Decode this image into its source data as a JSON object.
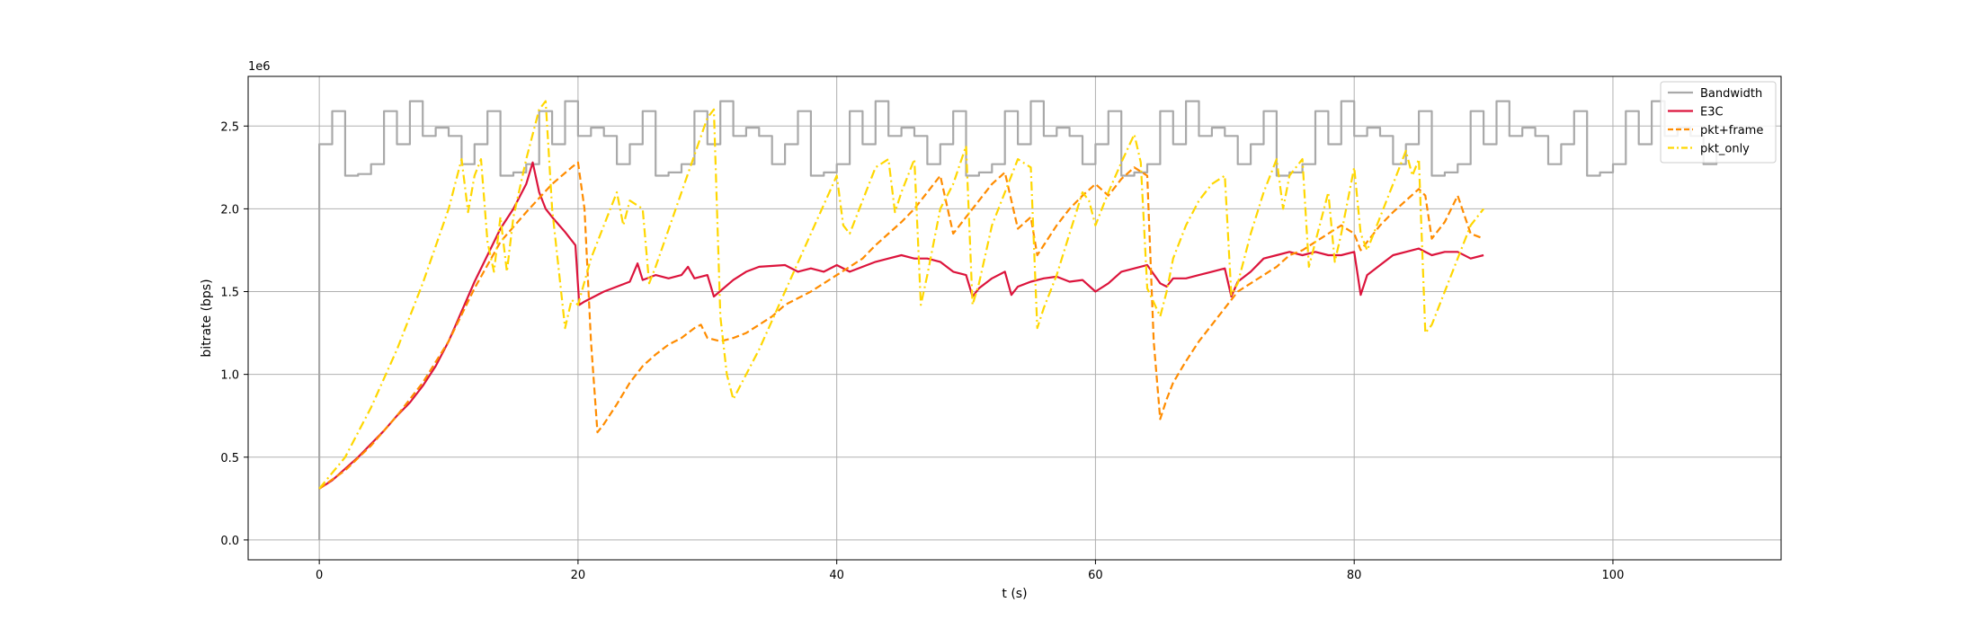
{
  "chart_data": {
    "type": "line",
    "xlabel": "t (s)",
    "ylabel": "bitrate (bps)",
    "y_offset_label": "1e6",
    "xlim": [
      -5.5,
      113
    ],
    "ylim": [
      -0.12,
      2.8
    ],
    "x_ticks": [
      0,
      20,
      40,
      60,
      80,
      100
    ],
    "x_tick_labels": [
      "0",
      "20",
      "40",
      "60",
      "80",
      "100"
    ],
    "y_ticks": [
      0.0,
      0.5,
      1.0,
      1.5,
      2.0,
      2.5
    ],
    "y_tick_labels": [
      "0.0",
      "0.5",
      "1.0",
      "1.5",
      "2.0",
      "2.5"
    ],
    "grid": true,
    "legend_position": "top-right",
    "series": [
      {
        "name": "Bandwidth",
        "color": "#a9a9a9",
        "style": "step",
        "x": [
          0,
          0,
          1,
          2,
          3,
          4,
          5,
          6,
          7,
          8,
          9,
          10,
          11,
          12,
          13,
          14,
          15,
          16,
          17,
          18,
          19,
          20,
          21,
          22,
          23,
          24,
          25,
          26,
          27,
          28,
          29,
          30,
          31,
          32,
          33,
          34,
          35,
          36,
          37,
          38,
          39,
          40,
          41,
          42,
          43,
          44,
          45,
          46,
          47,
          48,
          49,
          50,
          51,
          52,
          53,
          54,
          55,
          56,
          57,
          58,
          59,
          60,
          61,
          62,
          63,
          64,
          65,
          66,
          67,
          68,
          69,
          70,
          71,
          72,
          73,
          74,
          75,
          76,
          77,
          78,
          79,
          80,
          81,
          82,
          83,
          84,
          85,
          86,
          87,
          88,
          89,
          90,
          91,
          92,
          93,
          94,
          95,
          96,
          97,
          98,
          99,
          100,
          101,
          102,
          103,
          104,
          105,
          106,
          107,
          108
        ],
        "y": [
          0.0,
          2.39,
          2.59,
          2.2,
          2.21,
          2.27,
          2.59,
          2.39,
          2.65,
          2.44,
          2.49,
          2.44,
          2.27,
          2.39,
          2.59,
          2.2,
          2.22,
          2.27,
          2.59,
          2.39,
          2.65,
          2.44,
          2.49,
          2.44,
          2.27,
          2.39,
          2.59,
          2.2,
          2.22,
          2.27,
          2.59,
          2.39,
          2.65,
          2.44,
          2.49,
          2.44,
          2.27,
          2.39,
          2.59,
          2.2,
          2.22,
          2.27,
          2.59,
          2.39,
          2.65,
          2.44,
          2.49,
          2.44,
          2.27,
          2.39,
          2.59,
          2.2,
          2.22,
          2.27,
          2.59,
          2.39,
          2.65,
          2.44,
          2.49,
          2.44,
          2.27,
          2.39,
          2.59,
          2.2,
          2.22,
          2.27,
          2.59,
          2.39,
          2.65,
          2.44,
          2.49,
          2.44,
          2.27,
          2.39,
          2.59,
          2.2,
          2.22,
          2.27,
          2.59,
          2.39,
          2.65,
          2.44,
          2.49,
          2.44,
          2.27,
          2.39,
          2.59,
          2.2,
          2.22,
          2.27,
          2.59,
          2.39,
          2.65,
          2.44,
          2.49,
          2.44,
          2.27,
          2.39,
          2.59,
          2.2,
          2.22,
          2.27,
          2.59,
          2.39,
          2.65,
          2.44,
          2.49,
          2.44,
          2.27,
          2.39
        ]
      },
      {
        "name": "E3C",
        "color": "#dc143c",
        "style": "solid",
        "x": [
          0,
          1,
          2,
          3,
          4,
          5,
          6,
          7,
          8,
          9,
          10,
          11,
          12,
          13,
          14,
          15,
          16,
          16.5,
          17,
          17.5,
          18,
          19,
          19.8,
          20.1,
          20.5,
          22,
          24,
          24.6,
          25,
          26,
          27,
          28,
          28.5,
          29,
          30,
          30.5,
          32,
          33,
          34,
          36,
          37,
          38,
          39,
          40,
          41,
          42,
          43,
          44,
          45,
          46,
          47,
          48,
          49,
          50,
          50.5,
          51,
          52,
          53,
          53.5,
          54,
          55,
          56,
          57,
          58,
          59,
          60,
          61,
          62,
          63,
          64,
          65,
          65.5,
          66,
          67,
          68,
          69,
          70,
          70.5,
          71,
          72,
          73,
          74,
          75,
          76,
          77,
          78,
          79,
          80,
          80.5,
          81,
          82,
          83,
          84,
          85,
          86,
          87,
          88,
          89,
          90
        ],
        "y": [
          0.31,
          0.36,
          0.43,
          0.5,
          0.58,
          0.66,
          0.75,
          0.83,
          0.93,
          1.05,
          1.2,
          1.38,
          1.56,
          1.72,
          1.88,
          2.0,
          2.15,
          2.28,
          2.1,
          2.0,
          1.95,
          1.86,
          1.78,
          1.42,
          1.44,
          1.5,
          1.56,
          1.67,
          1.57,
          1.6,
          1.58,
          1.6,
          1.65,
          1.58,
          1.6,
          1.47,
          1.57,
          1.62,
          1.65,
          1.66,
          1.62,
          1.64,
          1.62,
          1.66,
          1.62,
          1.65,
          1.68,
          1.7,
          1.72,
          1.7,
          1.7,
          1.68,
          1.62,
          1.6,
          1.47,
          1.52,
          1.58,
          1.62,
          1.48,
          1.53,
          1.56,
          1.58,
          1.59,
          1.56,
          1.57,
          1.5,
          1.55,
          1.62,
          1.64,
          1.66,
          1.55,
          1.53,
          1.58,
          1.58,
          1.6,
          1.62,
          1.64,
          1.47,
          1.56,
          1.62,
          1.7,
          1.72,
          1.74,
          1.72,
          1.74,
          1.72,
          1.72,
          1.74,
          1.48,
          1.6,
          1.66,
          1.72,
          1.74,
          1.76,
          1.72,
          1.74,
          1.74,
          1.7,
          1.72
        ]
      },
      {
        "name": "pkt+frame",
        "color": "#ff8c00",
        "style": "dashed",
        "x": [
          0,
          2,
          4,
          6,
          8,
          10,
          12,
          14,
          16,
          18,
          19.5,
          20,
          20.5,
          21,
          21.5,
          22,
          23,
          24,
          25,
          26,
          27,
          28,
          29,
          29.5,
          30,
          31,
          32,
          33,
          34,
          35,
          36,
          37,
          38,
          39,
          40,
          41,
          42,
          43,
          44,
          45,
          46,
          47,
          48,
          49,
          50,
          51,
          52,
          53,
          54,
          55,
          55.5,
          56,
          57,
          58,
          59,
          60,
          61,
          62,
          63,
          64,
          64.5,
          65,
          65.5,
          66,
          67,
          68,
          69,
          70,
          71,
          72,
          73,
          74,
          75,
          76,
          77,
          78,
          79,
          80,
          80.5,
          81,
          82,
          83,
          84,
          85,
          85.5,
          86,
          87,
          88,
          89,
          90
        ],
        "y": [
          0.31,
          0.42,
          0.57,
          0.75,
          0.95,
          1.2,
          1.52,
          1.8,
          1.98,
          2.15,
          2.25,
          2.28,
          2.0,
          1.2,
          0.65,
          0.7,
          0.82,
          0.95,
          1.05,
          1.12,
          1.18,
          1.22,
          1.28,
          1.3,
          1.22,
          1.2,
          1.22,
          1.25,
          1.3,
          1.35,
          1.42,
          1.46,
          1.5,
          1.55,
          1.6,
          1.65,
          1.7,
          1.78,
          1.85,
          1.92,
          2.0,
          2.1,
          2.2,
          1.85,
          1.95,
          2.05,
          2.15,
          2.22,
          1.88,
          1.95,
          1.72,
          1.78,
          1.9,
          2.0,
          2.08,
          2.15,
          2.08,
          2.18,
          2.25,
          2.2,
          1.2,
          0.73,
          0.85,
          0.95,
          1.08,
          1.2,
          1.3,
          1.4,
          1.5,
          1.55,
          1.6,
          1.65,
          1.72,
          1.75,
          1.8,
          1.85,
          1.9,
          1.85,
          1.75,
          1.8,
          1.9,
          1.98,
          2.05,
          2.12,
          2.08,
          1.82,
          1.92,
          2.08,
          1.85,
          1.82
        ]
      },
      {
        "name": "pkt_only",
        "color": "#ffd700",
        "style": "dashdot",
        "x": [
          0,
          2,
          4,
          6,
          8,
          10,
          11,
          11.5,
          12,
          12.5,
          13,
          13.5,
          14,
          14.5,
          15,
          16,
          17,
          17.5,
          18,
          19,
          19.5,
          20,
          21,
          22,
          23,
          23.5,
          24,
          25,
          25.5,
          26,
          28,
          30,
          30.5,
          31,
          31.5,
          32,
          34,
          36,
          38,
          40,
          40.5,
          41,
          42,
          43,
          44,
          44.5,
          45,
          46,
          46.5,
          47,
          48,
          49,
          50,
          50.5,
          51,
          52,
          53,
          54,
          55,
          55.5,
          56,
          57,
          58,
          59,
          59.5,
          60,
          61,
          62,
          63,
          63.5,
          64,
          65,
          65.5,
          66,
          67,
          68,
          69,
          70,
          70.5,
          71,
          72,
          73,
          74,
          74.5,
          75,
          76,
          76.5,
          77,
          78,
          78.5,
          79,
          80,
          80.5,
          81,
          82,
          83,
          84,
          84.5,
          85,
          85.5,
          86,
          87,
          88,
          89,
          90
        ],
        "y": [
          0.31,
          0.5,
          0.8,
          1.15,
          1.55,
          2.0,
          2.3,
          1.98,
          2.2,
          2.3,
          1.8,
          1.62,
          1.95,
          1.62,
          1.95,
          2.3,
          2.6,
          2.65,
          2.0,
          1.28,
          1.45,
          1.42,
          1.7,
          1.9,
          2.1,
          1.9,
          2.05,
          2.0,
          1.55,
          1.65,
          2.1,
          2.55,
          2.6,
          1.35,
          1.0,
          0.85,
          1.15,
          1.5,
          1.85,
          2.2,
          1.9,
          1.85,
          2.05,
          2.25,
          2.3,
          1.98,
          2.1,
          2.3,
          1.42,
          1.6,
          2.0,
          2.15,
          2.38,
          1.42,
          1.55,
          1.9,
          2.1,
          2.3,
          2.25,
          1.28,
          1.4,
          1.6,
          1.85,
          2.1,
          2.05,
          1.9,
          2.1,
          2.28,
          2.45,
          2.28,
          1.52,
          1.35,
          1.5,
          1.7,
          1.9,
          2.05,
          2.15,
          2.2,
          1.48,
          1.55,
          1.85,
          2.1,
          2.3,
          2.0,
          2.2,
          2.3,
          1.65,
          1.8,
          2.1,
          1.68,
          1.85,
          2.25,
          1.85,
          1.75,
          1.95,
          2.15,
          2.35,
          2.2,
          2.3,
          1.25,
          1.3,
          1.5,
          1.7,
          1.9,
          2.0
        ]
      }
    ]
  }
}
